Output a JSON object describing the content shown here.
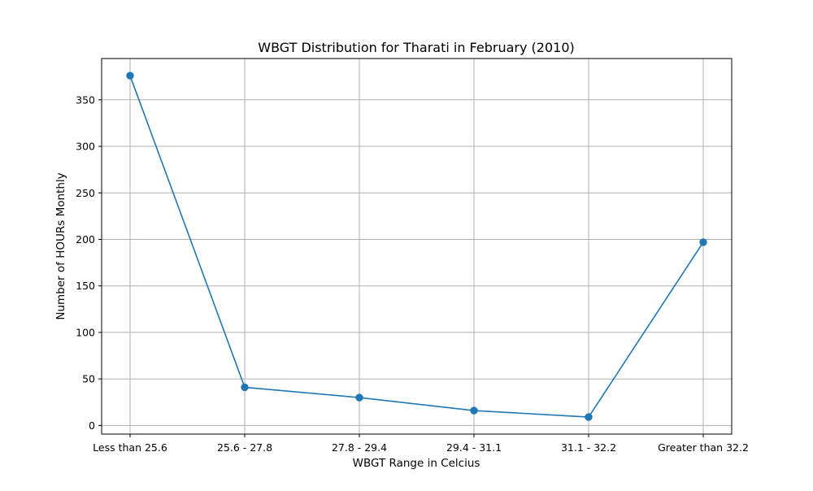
{
  "chart_data": {
    "type": "line",
    "title": "WBGT Distribution for Tharati in February (2010)",
    "xlabel": "WBGT Range in Celcius",
    "ylabel": "Number of HOURs Monthly",
    "categories": [
      "Less than 25.6",
      "25.6 - 27.8",
      "27.8 - 29.4",
      "29.4 - 31.1",
      "31.1 - 32.2",
      "Greater than 32.2"
    ],
    "series": [
      {
        "values": [
          376,
          41,
          30,
          16,
          9,
          197
        ],
        "color": "#1f77b4",
        "marker": "circle"
      }
    ],
    "yticks": [
      0,
      50,
      100,
      150,
      200,
      250,
      300,
      350
    ],
    "ylim": [
      -9.3,
      394.4
    ],
    "grid": true,
    "legend": "none"
  }
}
